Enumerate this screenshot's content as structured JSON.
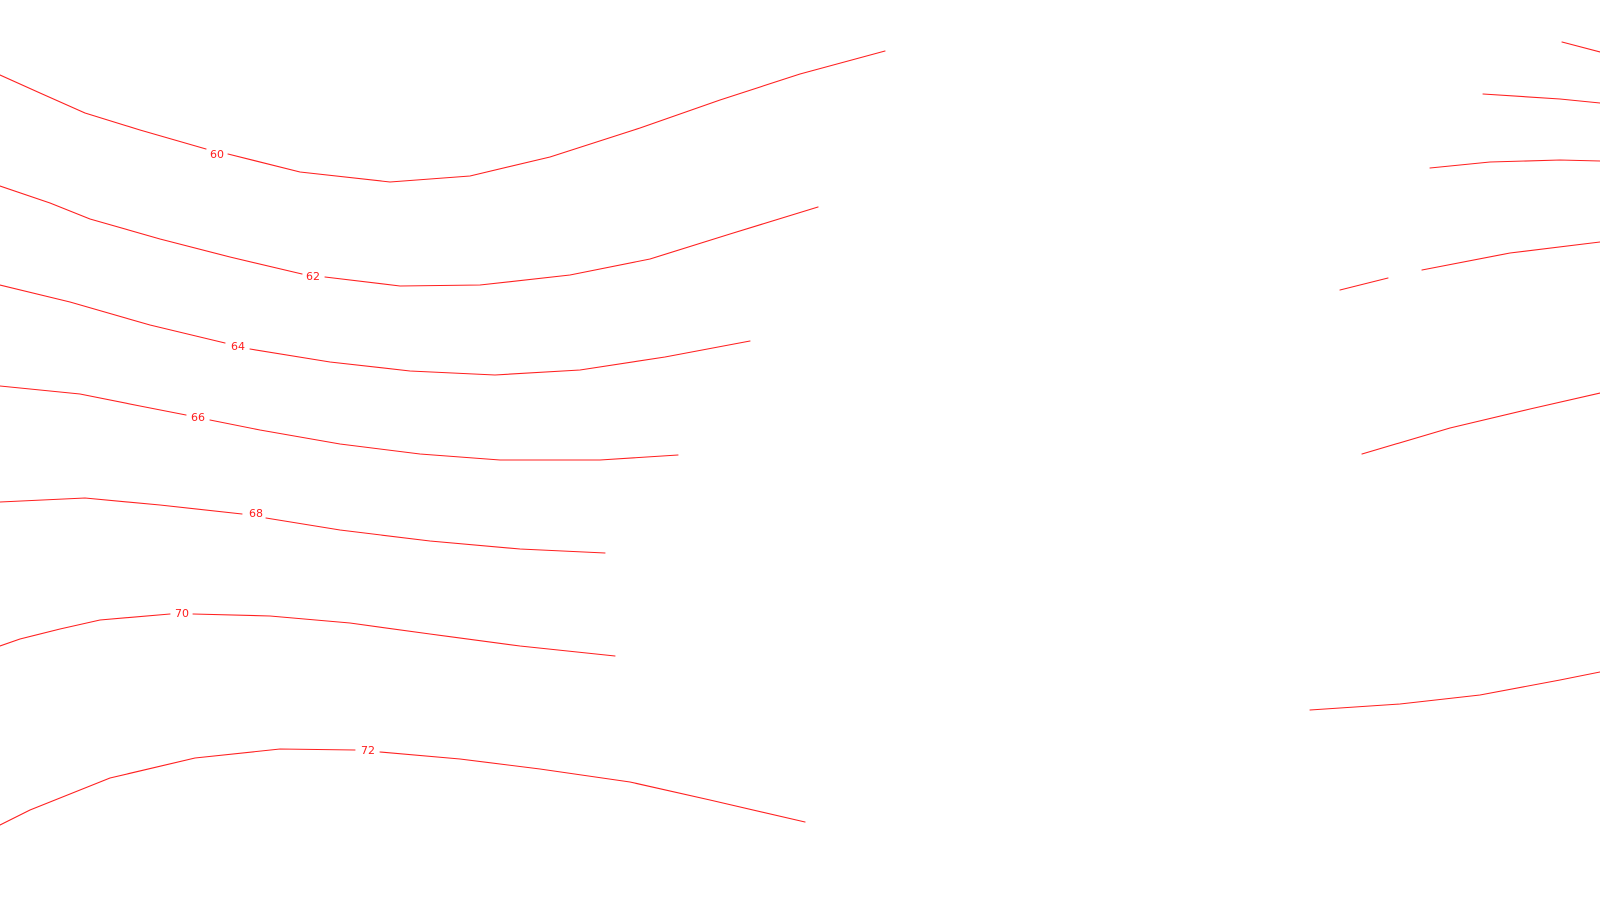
{
  "map": {
    "line_color": "#ff2020",
    "label_color": "#ff2020",
    "background_color": "#ffffff",
    "contours": [
      {
        "id": "c60",
        "label": "60"
      },
      {
        "id": "c62",
        "label": "62"
      },
      {
        "id": "c64",
        "label": "64"
      },
      {
        "id": "c66",
        "label": "66"
      },
      {
        "id": "c68",
        "label": "68"
      },
      {
        "id": "c70",
        "label": "70"
      },
      {
        "id": "c72",
        "label": "72"
      }
    ]
  }
}
